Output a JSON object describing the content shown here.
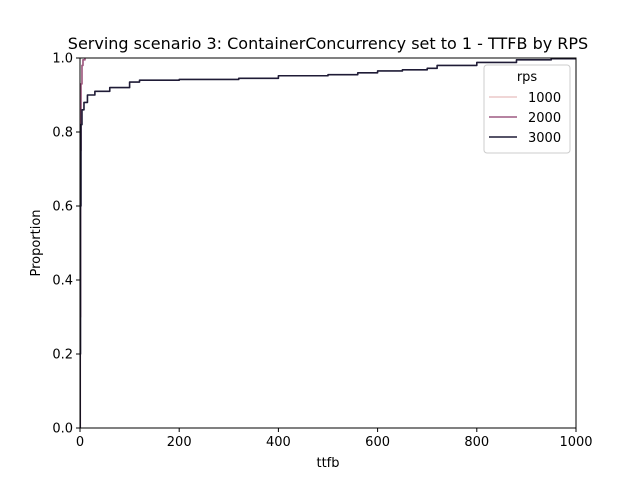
{
  "chart_data": {
    "type": "line",
    "subtype": "ecdf",
    "title": "Serving scenario 3: ContainerConcurrency set to 1 - TTFB by RPS",
    "xlabel": "ttfb",
    "ylabel": "Proportion",
    "xlim": [
      0,
      1000
    ],
    "ylim": [
      0,
      1
    ],
    "x_ticks": [
      0,
      200,
      400,
      600,
      800,
      1000
    ],
    "y_ticks": [
      0.0,
      0.2,
      0.4,
      0.6,
      0.8,
      1.0
    ],
    "x_tick_labels": [
      "0",
      "200",
      "400",
      "600",
      "800",
      "1000"
    ],
    "y_tick_labels": [
      "0.0",
      "0.2",
      "0.4",
      "0.6",
      "0.8",
      "1.0"
    ],
    "grid": false,
    "legend": {
      "title": "rps",
      "placement": "top-right"
    },
    "series": [
      {
        "name": "1000",
        "color": "#ebc9c9",
        "points": [
          [
            0,
            0.0
          ],
          [
            0.5,
            0.3
          ],
          [
            1,
            0.75
          ],
          [
            2,
            0.93
          ],
          [
            4,
            0.98
          ],
          [
            6,
            0.995
          ],
          [
            10,
            1.0
          ]
        ]
      },
      {
        "name": "2000",
        "color": "#9e5a82",
        "points": [
          [
            0,
            0.0
          ],
          [
            0.5,
            0.3
          ],
          [
            1,
            0.75
          ],
          [
            2,
            0.93
          ],
          [
            4,
            0.98
          ],
          [
            6,
            0.995
          ],
          [
            10,
            1.0
          ]
        ]
      },
      {
        "name": "3000",
        "color": "#1f1b36",
        "points": [
          [
            0,
            0.0
          ],
          [
            0.3,
            0.2
          ],
          [
            1,
            0.6
          ],
          [
            2,
            0.82
          ],
          [
            4,
            0.86
          ],
          [
            8,
            0.88
          ],
          [
            15,
            0.9
          ],
          [
            30,
            0.91
          ],
          [
            60,
            0.92
          ],
          [
            100,
            0.935
          ],
          [
            120,
            0.94
          ],
          [
            200,
            0.942
          ],
          [
            320,
            0.945
          ],
          [
            400,
            0.952
          ],
          [
            500,
            0.955
          ],
          [
            560,
            0.96
          ],
          [
            600,
            0.965
          ],
          [
            650,
            0.968
          ],
          [
            700,
            0.972
          ],
          [
            720,
            0.98
          ],
          [
            800,
            0.988
          ],
          [
            880,
            0.995
          ],
          [
            950,
            0.998
          ],
          [
            1000,
            1.0
          ]
        ]
      }
    ]
  }
}
